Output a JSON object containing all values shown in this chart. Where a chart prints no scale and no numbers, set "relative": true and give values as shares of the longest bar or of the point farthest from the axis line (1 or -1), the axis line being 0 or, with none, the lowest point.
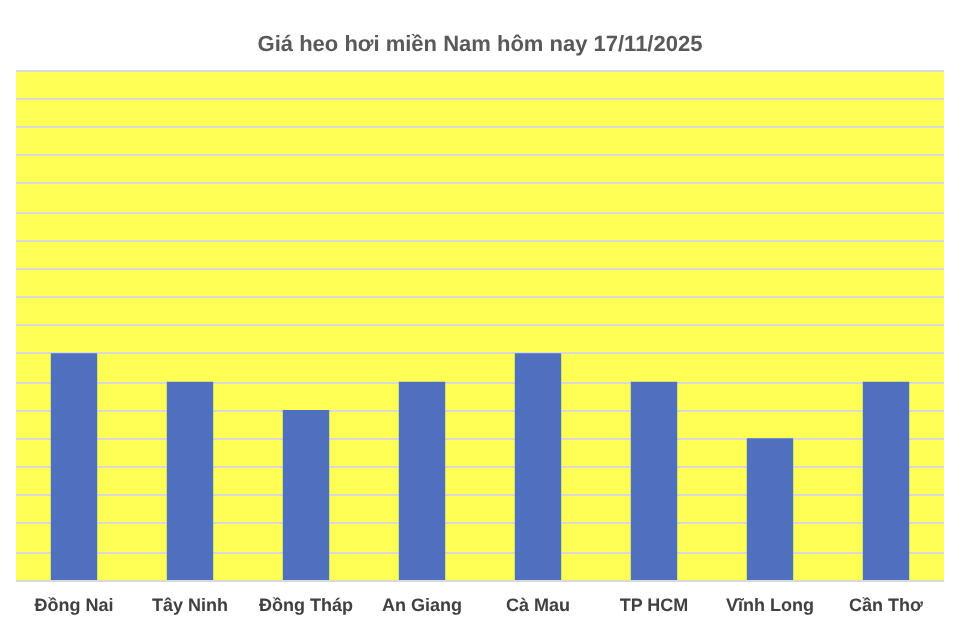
{
  "chart_data": {
    "type": "bar",
    "title": "Giá heo hơi miền Nam hôm nay 17/11/2025",
    "categories": [
      "Đồng Nai",
      "Tây Ninh",
      "Đồng Tháp",
      "An Giang",
      "Cà Mau",
      "TP HCM",
      "Vĩnh Long",
      "Cần Thơ"
    ],
    "values": [
      1,
      0.875,
      0.75,
      0.875,
      1,
      0.875,
      0.625,
      0.875
    ],
    "color": "#4f6fbf",
    "relative": true,
    "grid": "y"
  }
}
